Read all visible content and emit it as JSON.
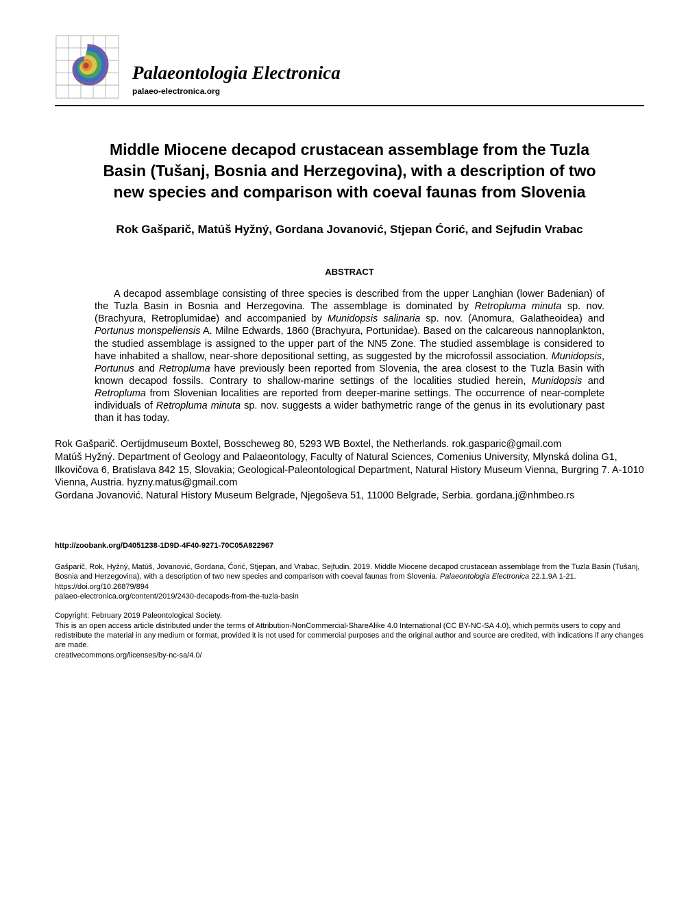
{
  "journal": {
    "name": "Palaeontologia Electronica",
    "url": "palaeo-electronica.org"
  },
  "title": "Middle Miocene decapod crustacean assemblage from the Tuzla Basin (Tušanj, Bosnia and Herzegovina), with a description of two new species and comparison with coeval faunas from Slovenia",
  "authors": "Rok Gašparič, Matúš Hyžný, Gordana Jovanović, Stjepan Ćorić, and Sejfudin Vrabac",
  "abstract_heading": "ABSTRACT",
  "abstract_html": "A decapod assemblage consisting of three species is described from the upper Langhian (lower Badenian) of the Tuzla Basin in Bosnia and Herzegovina. The assemblage is dominated by <span class=\"i\">Retropluma minuta</span> sp. nov. (Brachyura, Retroplumidae) and accompanied by <span class=\"i\">Munidopsis salinaria</span> sp. nov. (Anomura, Galatheoidea) and <span class=\"i\">Portunus monspeliensis</span> A. Milne Edwards, 1860 (Brachyura, Portunidae). Based on the calcareous nannoplankton, the studied assemblage is assigned to the upper part of the NN5 Zone. The studied assemblage is considered to have inhabited a shallow, near-shore depositional setting, as suggested by the microfossil association. <span class=\"i\">Munidopsis</span>, <span class=\"i\">Portunus</span> and <span class=\"i\">Retropluma</span> have previously been reported from Slovenia, the area closest to the Tuzla Basin with known decapod fossils. Contrary to shallow-marine settings of the localities studied herein, <span class=\"i\">Munidopsis</span> and <span class=\"i\">Retropluma</span> from Slovenian localities are reported from deeper-marine settings. The occurrence of near-complete individuals of <span class=\"i\">Retropluma minuta</span> sp. nov. suggests a wider bathymetric range of the genus in its evolutionary past than it has today.",
  "affiliations_html": "Rok Gašparič. Oertijdmuseum Boxtel, Bosscheweg 80, 5293 WB Boxtel, the Netherlands. rok.gasparic@gmail.com<br>Matúš Hyžný. Department of Geology and Palaeontology, Faculty of Natural Sciences, Comenius University, Mlynská dolina G1, Ilkovičova 6, Bratislava 842 15, Slovakia; Geological-Paleontological Department, Natural History Museum Vienna, Burgring 7. A-1010 Vienna, Austria. hyzny.matus@gmail.com<br>Gordana Jovanović. Natural History Museum Belgrade, Njegoševa 51, 11000 Belgrade, Serbia. gordana.j@nhmbeo.rs",
  "zoobank": "http://zoobank.org/D4051238-1D9D-4F40-9271-70C05A822967",
  "citation_html": "Gašparič, Rok, Hyžný, Matúš, Jovanović, Gordana, Ćorić, Stjepan, and Vrabac, Sejfudin. 2019. Middle Miocene decapod crustacean assemblage from the Tuzla Basin (Tušanj, Bosnia and Herzegovina), with a description of two new species and comparison with coeval faunas from Slovenia. <span class=\"i\">Palaeontologia Electronica</span> 22.1.9A 1-21. https://doi.org/10.26879/894<br>palaeo-electronica.org/content/2019/2430-decapods-from-the-tuzla-basin",
  "copyright_html": "Copyright: February 2019 Paleontological Society.<br>This is an open access article distributed under the terms of Attribution-NonCommercial-ShareAlike 4.0 International (CC BY-NC-SA 4.0), which permits users to copy and redistribute the material in any medium or format, provided it is not used for commercial purposes and the original author and source are credited, with indications if any changes are made.<br>creativecommons.org/licenses/by-nc-sa/4.0/",
  "logo": {
    "grid_color": "#b0b0b0",
    "colors": {
      "purple": "#6a4d9a",
      "green": "#4aa84d",
      "blue": "#2d6fd0",
      "orange": "#e08a2f",
      "red": "#c23a3a",
      "yellow": "#e8c94a"
    }
  }
}
